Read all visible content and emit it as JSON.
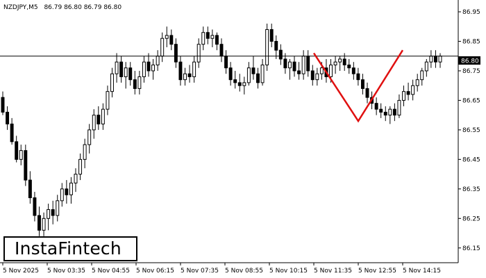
{
  "header": {
    "symbol": "NZDJPY,M5",
    "ohlc": "86.79 86.80 86.79 86.80"
  },
  "logo": {
    "text": "InstaFintech"
  },
  "chart_data": {
    "type": "candlestick",
    "title": "NZDJPY,M5",
    "ylim": [
      86.1,
      86.99
    ],
    "y_ticks": [
      "86.95",
      "86.85",
      "86.75",
      "86.65",
      "86.55",
      "86.45",
      "86.35",
      "86.25",
      "86.15"
    ],
    "x_ticks": [
      "5 Nov 2025",
      "5 Nov 03:35",
      "5 Nov 04:55",
      "5 Nov 06:15",
      "5 Nov 07:35",
      "5 Nov 08:55",
      "5 Nov 10:15",
      "5 Nov 11:35",
      "5 Nov 12:55",
      "5 Nov 14:15"
    ],
    "current_price": "86.80",
    "price_line": 86.8,
    "pattern": {
      "name": "double bottom",
      "points": [
        {
          "x": "5 Nov 11:35",
          "y": 86.81
        },
        {
          "x": "5 Nov 12:55",
          "y": 86.58
        },
        {
          "x": "5 Nov 14:15",
          "y": 86.82
        }
      ],
      "color": "#e01010"
    },
    "candle_color_up": "#ffffff",
    "candle_color_down": "#000000",
    "series": [
      {
        "values": [
          [
            86.66,
            86.68,
            86.6,
            86.61
          ],
          [
            86.61,
            86.63,
            86.55,
            86.57
          ],
          [
            86.57,
            86.59,
            86.5,
            86.51
          ],
          [
            86.51,
            86.53,
            86.44,
            86.45
          ],
          [
            86.45,
            86.5,
            86.43,
            86.48
          ],
          [
            86.48,
            86.5,
            86.36,
            86.38
          ],
          [
            86.38,
            86.41,
            86.3,
            86.32
          ],
          [
            86.32,
            86.34,
            86.24,
            86.26
          ],
          [
            86.26,
            86.29,
            86.19,
            86.21
          ],
          [
            86.21,
            86.27,
            86.19,
            86.25
          ],
          [
            86.25,
            86.3,
            86.21,
            86.28
          ],
          [
            86.28,
            86.31,
            86.23,
            86.26
          ],
          [
            86.26,
            86.33,
            86.24,
            86.31
          ],
          [
            86.31,
            86.37,
            86.29,
            86.35
          ],
          [
            86.35,
            86.38,
            86.3,
            86.33
          ],
          [
            86.33,
            86.39,
            86.3,
            86.37
          ],
          [
            86.37,
            86.42,
            86.34,
            86.4
          ],
          [
            86.4,
            86.47,
            86.38,
            86.45
          ],
          [
            86.45,
            86.52,
            86.42,
            86.5
          ],
          [
            86.5,
            86.57,
            86.47,
            86.55
          ],
          [
            86.55,
            86.62,
            86.52,
            86.6
          ],
          [
            86.6,
            86.63,
            86.55,
            86.57
          ],
          [
            86.57,
            86.64,
            86.55,
            86.62
          ],
          [
            86.62,
            86.7,
            86.6,
            86.68
          ],
          [
            86.68,
            86.76,
            86.66,
            86.74
          ],
          [
            86.74,
            86.81,
            86.71,
            86.78
          ],
          [
            86.78,
            86.8,
            86.71,
            86.73
          ],
          [
            86.73,
            86.78,
            86.69,
            86.76
          ],
          [
            86.76,
            86.78,
            86.7,
            86.72
          ],
          [
            86.72,
            86.75,
            86.67,
            86.69
          ],
          [
            86.69,
            86.75,
            86.67,
            86.73
          ],
          [
            86.73,
            86.8,
            86.71,
            86.78
          ],
          [
            86.78,
            86.81,
            86.73,
            86.75
          ],
          [
            86.75,
            86.79,
            86.72,
            86.77
          ],
          [
            86.77,
            86.82,
            86.75,
            86.8
          ],
          [
            86.8,
            86.88,
            86.78,
            86.86
          ],
          [
            86.86,
            86.9,
            86.83,
            86.87
          ],
          [
            86.87,
            86.89,
            86.82,
            86.84
          ],
          [
            86.84,
            86.86,
            86.76,
            86.78
          ],
          [
            86.78,
            86.8,
            86.7,
            86.72
          ],
          [
            86.72,
            86.76,
            86.7,
            86.74
          ],
          [
            86.74,
            86.77,
            86.71,
            86.73
          ],
          [
            86.73,
            86.8,
            86.71,
            86.78
          ],
          [
            86.78,
            86.86,
            86.76,
            86.84
          ],
          [
            86.84,
            86.9,
            86.82,
            86.88
          ],
          [
            86.88,
            86.9,
            86.84,
            86.86
          ],
          [
            86.86,
            86.89,
            86.83,
            86.87
          ],
          [
            86.87,
            86.88,
            86.82,
            86.84
          ],
          [
            86.84,
            86.86,
            86.78,
            86.8
          ],
          [
            86.8,
            86.82,
            86.74,
            86.76
          ],
          [
            86.76,
            86.78,
            86.7,
            86.72
          ],
          [
            86.72,
            86.75,
            86.69,
            86.71
          ],
          [
            86.71,
            86.74,
            86.68,
            86.7
          ],
          [
            86.7,
            86.73,
            86.67,
            86.71
          ],
          [
            86.71,
            86.78,
            86.7,
            86.76
          ],
          [
            86.76,
            86.8,
            86.72,
            86.74
          ],
          [
            86.74,
            86.76,
            86.69,
            86.71
          ],
          [
            86.71,
            86.79,
            86.7,
            86.77
          ],
          [
            86.77,
            86.91,
            86.75,
            86.89
          ],
          [
            86.89,
            86.91,
            86.83,
            86.85
          ],
          [
            86.85,
            86.87,
            86.79,
            86.82
          ],
          [
            86.82,
            86.84,
            86.77,
            86.79
          ],
          [
            86.79,
            86.81,
            86.74,
            86.76
          ],
          [
            86.76,
            86.79,
            86.72,
            86.78
          ],
          [
            86.78,
            86.8,
            86.73,
            86.75
          ],
          [
            86.75,
            86.78,
            86.72,
            86.74
          ],
          [
            86.74,
            86.82,
            86.72,
            86.8
          ],
          [
            86.8,
            86.82,
            86.73,
            86.75
          ],
          [
            86.75,
            86.77,
            86.7,
            86.72
          ],
          [
            86.72,
            86.76,
            86.7,
            86.74
          ],
          [
            86.74,
            86.78,
            86.72,
            86.76
          ],
          [
            86.76,
            86.79,
            86.71,
            86.73
          ],
          [
            86.73,
            86.79,
            86.71,
            86.77
          ],
          [
            86.77,
            86.8,
            86.74,
            86.78
          ],
          [
            86.78,
            86.8,
            86.75,
            86.79
          ],
          [
            86.79,
            86.81,
            86.75,
            86.77
          ],
          [
            86.77,
            86.79,
            86.74,
            86.76
          ],
          [
            86.76,
            86.78,
            86.72,
            86.74
          ],
          [
            86.74,
            86.76,
            86.7,
            86.72
          ],
          [
            86.72,
            86.74,
            86.67,
            86.69
          ],
          [
            86.69,
            86.71,
            86.64,
            86.66
          ],
          [
            86.66,
            86.68,
            86.62,
            86.64
          ],
          [
            86.64,
            86.66,
            86.6,
            86.62
          ],
          [
            86.62,
            86.64,
            86.59,
            86.61
          ],
          [
            86.61,
            86.63,
            86.58,
            86.6
          ],
          [
            86.6,
            86.63,
            86.57,
            86.62
          ],
          [
            86.62,
            86.64,
            86.58,
            86.6
          ],
          [
            86.6,
            86.67,
            86.59,
            86.65
          ],
          [
            86.65,
            86.7,
            86.63,
            86.68
          ],
          [
            86.68,
            86.71,
            86.65,
            86.67
          ],
          [
            86.67,
            86.72,
            86.65,
            86.7
          ],
          [
            86.7,
            86.74,
            86.68,
            86.72
          ],
          [
            86.72,
            86.76,
            86.7,
            86.75
          ],
          [
            86.75,
            86.79,
            86.73,
            86.78
          ],
          [
            86.78,
            86.82,
            86.76,
            86.8
          ],
          [
            86.8,
            86.82,
            86.76,
            86.78
          ],
          [
            86.78,
            86.81,
            86.76,
            86.8
          ]
        ]
      }
    ]
  }
}
